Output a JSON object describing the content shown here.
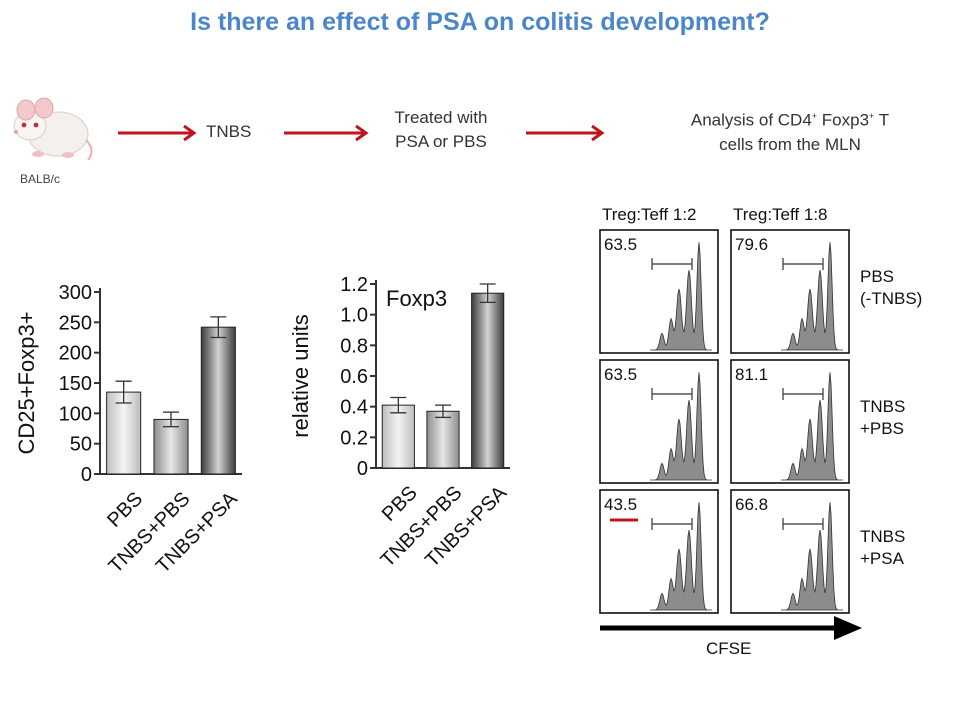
{
  "title": "Is there an effect of PSA on colitis development?",
  "workflow": {
    "strain": "BALB/c",
    "step1": "TNBS",
    "step2_line1": "Treated with",
    "step2_line2": "PSA or PBS",
    "step3_line1_a": "Analysis of CD4",
    "step3_line1_b": " Foxp3",
    "step3_line1_c": " T",
    "step3_line2": "cells from the MLN",
    "superscript": "+"
  },
  "colors": {
    "title": "#4a86c8",
    "arrow": "#c0141c",
    "histogram_fill": "#8c8c8c"
  },
  "chart_data": [
    {
      "type": "bar",
      "ylabel": "CD25+Foxp3+",
      "categories": [
        "PBS",
        "TNBS+PBS",
        "TNBS+PSA"
      ],
      "values": [
        135,
        90,
        242
      ],
      "errors": [
        18,
        12,
        17
      ],
      "ylim": [
        0,
        300
      ],
      "yticks": [
        0,
        50,
        100,
        150,
        200,
        250,
        300
      ],
      "bar_fills": [
        "light",
        "medium",
        "dark"
      ]
    },
    {
      "type": "bar",
      "title": "Foxp3",
      "ylabel": "relative units",
      "categories": [
        "PBS",
        "TNBS+PBS",
        "TNBS+PSA"
      ],
      "values": [
        0.41,
        0.37,
        1.14
      ],
      "errors": [
        0.05,
        0.04,
        0.06
      ],
      "ylim": [
        0,
        1.2
      ],
      "yticks": [
        "0",
        "0.2",
        "0.4",
        "0.6",
        "0.8",
        "1.0",
        "1.2"
      ],
      "bar_fills": [
        "light",
        "medium",
        "dark"
      ]
    },
    {
      "type": "histogram-grid",
      "xlabel": "CFSE",
      "columns": [
        "Treg:Teff 1:2",
        "Treg:Teff 1:8"
      ],
      "rows": [
        "PBS\n(-TNBS)",
        "TNBS\n+PBS",
        "TNBS\n+PSA"
      ],
      "percentages": [
        [
          "63.5",
          "79.6"
        ],
        [
          "63.5",
          "81.1"
        ],
        [
          "43.5",
          "66.8"
        ]
      ],
      "highlight": {
        "row": 2,
        "col": 0
      }
    }
  ]
}
